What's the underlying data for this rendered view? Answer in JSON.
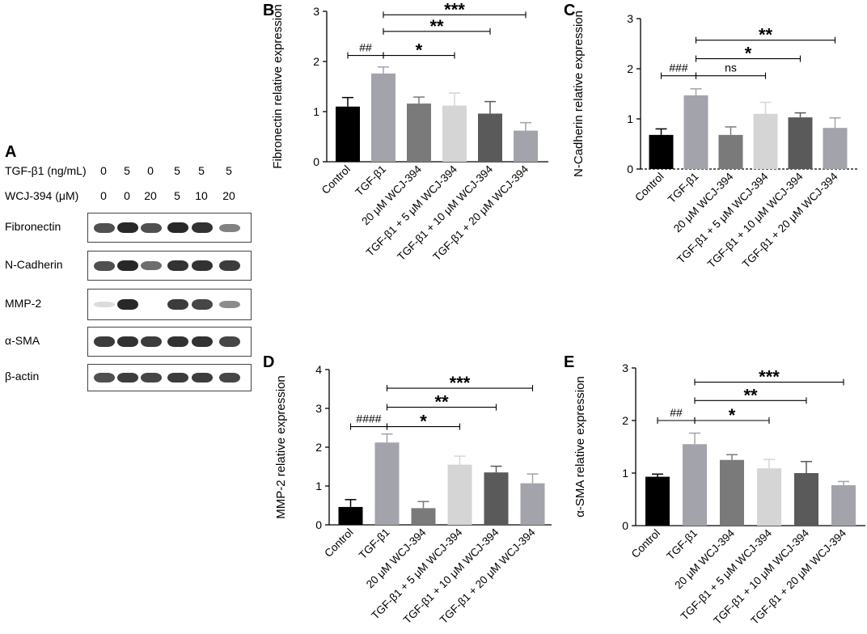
{
  "panel_letters": {
    "a": "A",
    "b": "B",
    "c": "C",
    "d": "D",
    "e": "E"
  },
  "western_blot": {
    "rows": [
      {
        "label": "TGF-β1 (ng/mL)",
        "values": [
          "0",
          "5",
          "0",
          "5",
          "5",
          "5"
        ]
      },
      {
        "label": "WCJ-394 (μM)",
        "values": [
          "0",
          "0",
          "20",
          "5",
          "10",
          "20"
        ]
      }
    ],
    "bands": [
      {
        "name": "Fibronectin",
        "intensity": [
          0.75,
          0.95,
          0.75,
          0.95,
          0.9,
          0.5
        ]
      },
      {
        "name": "N-Cadherin",
        "intensity": [
          0.75,
          0.95,
          0.6,
          0.9,
          0.9,
          0.85
        ]
      },
      {
        "name": "MMP-2",
        "intensity": [
          0.05,
          0.95,
          0.0,
          0.85,
          0.8,
          0.45
        ]
      },
      {
        "name": "α-SMA",
        "intensity": [
          0.85,
          0.9,
          0.85,
          0.9,
          0.9,
          0.8
        ]
      },
      {
        "name": "β-actin",
        "intensity": [
          0.75,
          0.85,
          0.8,
          0.85,
          0.85,
          0.8
        ]
      }
    ]
  },
  "chart_data": [
    {
      "id": "B",
      "type": "bar",
      "ylabel": "Fibronectin relative expression",
      "ylim": [
        0,
        3
      ],
      "yticks": [
        0,
        1,
        2,
        3
      ],
      "categories": [
        "Control",
        "TGF-β1",
        "20 μM WCJ-394",
        "TGF-β1 + 5 μM WCJ-394",
        "TGF-β1 + 10 μM WCJ-394",
        "TGF-β1 + 20 μM WCJ-394"
      ],
      "values": [
        1.1,
        1.76,
        1.16,
        1.12,
        0.96,
        0.62
      ],
      "errors": [
        0.18,
        0.13,
        0.13,
        0.25,
        0.24,
        0.16
      ],
      "colors": [
        "#000000",
        "#a3a3ab",
        "#7a7a7a",
        "#d5d5d5",
        "#5a5a5a",
        "#a3a3ab"
      ],
      "annotations": [
        {
          "from": 0,
          "to": 1,
          "label": "##",
          "y": 2.12
        },
        {
          "from": 1,
          "to": 3,
          "label": "*",
          "y": 2.12
        },
        {
          "from": 1,
          "to": 4,
          "label": "**",
          "y": 2.6
        },
        {
          "from": 1,
          "to": 5,
          "label": "***",
          "y": 2.93
        }
      ],
      "dashed_baseline": false
    },
    {
      "id": "C",
      "type": "bar",
      "ylabel": "N-Cadherin relative expression",
      "ylim": [
        0,
        3
      ],
      "yticks": [
        0,
        1,
        2,
        3
      ],
      "categories": [
        "Control",
        "TGF-β1",
        "20 μM WCJ-394",
        "TGF-β1 + 5 μM WCJ-394",
        "TGF-β1 + 10 μM WCJ-394",
        "TGF-β1 + 20 μM WCJ-394"
      ],
      "values": [
        0.68,
        1.47,
        0.68,
        1.1,
        1.03,
        0.82
      ],
      "errors": [
        0.12,
        0.13,
        0.16,
        0.23,
        0.09,
        0.2
      ],
      "colors": [
        "#000000",
        "#a3a3ab",
        "#7a7a7a",
        "#d5d5d5",
        "#5a5a5a",
        "#a3a3ab"
      ],
      "annotations": [
        {
          "from": 0,
          "to": 1,
          "label": "###",
          "y": 1.86
        },
        {
          "from": 1,
          "to": 3,
          "label": "ns",
          "y": 1.86
        },
        {
          "from": 1,
          "to": 4,
          "label": "*",
          "y": 2.2
        },
        {
          "from": 1,
          "to": 5,
          "label": "**",
          "y": 2.57
        }
      ],
      "dashed_baseline": true
    },
    {
      "id": "D",
      "type": "bar",
      "ylabel": "MMP-2 relative expression",
      "ylim": [
        0,
        4
      ],
      "yticks": [
        0,
        1,
        2,
        3,
        4
      ],
      "categories": [
        "Control",
        "TGF-β1",
        "20 μM WCJ-394",
        "TGF-β1 + 5 μM WCJ-394",
        "TGF-β1 + 10 μM WCJ-394",
        "TGF-β1 + 20 μM WCJ-394"
      ],
      "values": [
        0.46,
        2.12,
        0.43,
        1.55,
        1.35,
        1.07
      ],
      "errors": [
        0.19,
        0.22,
        0.17,
        0.22,
        0.16,
        0.24
      ],
      "colors": [
        "#000000",
        "#a3a3ab",
        "#7a7a7a",
        "#d5d5d5",
        "#5a5a5a",
        "#a3a3ab"
      ],
      "annotations": [
        {
          "from": 0,
          "to": 1,
          "label": "####",
          "y": 2.53
        },
        {
          "from": 1,
          "to": 3,
          "label": "*",
          "y": 2.53
        },
        {
          "from": 1,
          "to": 4,
          "label": "**",
          "y": 3.03
        },
        {
          "from": 1,
          "to": 5,
          "label": "***",
          "y": 3.52
        }
      ],
      "dashed_baseline": false
    },
    {
      "id": "E",
      "type": "bar",
      "ylabel": "α-SMA relative expression",
      "ylim": [
        0,
        3
      ],
      "yticks": [
        0,
        1,
        2,
        3
      ],
      "categories": [
        "Control",
        "TGF-β1",
        "20 μM WCJ-394",
        "TGF-β1 + 5 μM WCJ-394",
        "TGF-β1 + 10 μM WCJ-394",
        "TGF-β1 + 20 μM WCJ-394"
      ],
      "values": [
        0.93,
        1.55,
        1.25,
        1.09,
        1.0,
        0.77
      ],
      "errors": [
        0.05,
        0.21,
        0.1,
        0.17,
        0.22,
        0.07
      ],
      "colors": [
        "#000000",
        "#a3a3ab",
        "#7a7a7a",
        "#d5d5d5",
        "#5a5a5a",
        "#a3a3ab"
      ],
      "annotations": [
        {
          "from": 0,
          "to": 1,
          "label": "##",
          "y": 2.0
        },
        {
          "from": 1,
          "to": 3,
          "label": "*",
          "y": 2.0
        },
        {
          "from": 1,
          "to": 4,
          "label": "**",
          "y": 2.38
        },
        {
          "from": 1,
          "to": 5,
          "label": "***",
          "y": 2.73
        }
      ],
      "dashed_baseline": false
    }
  ]
}
